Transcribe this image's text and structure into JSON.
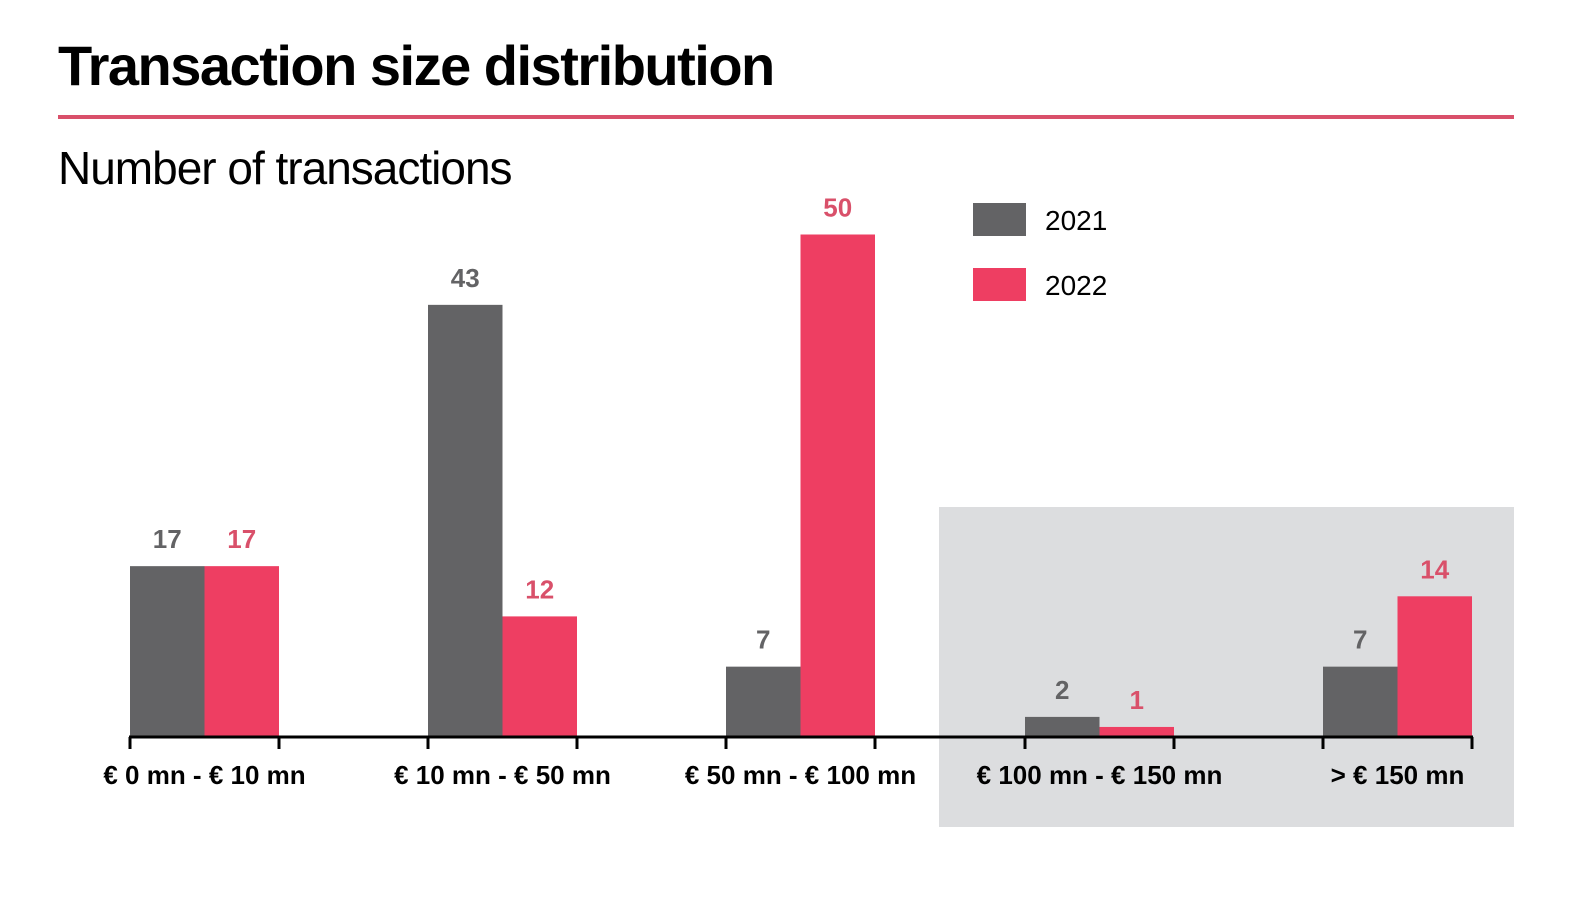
{
  "header": {
    "title": "Transaction size distribution",
    "subtitle": "Number of transactions"
  },
  "colors": {
    "rule": "#d9506a",
    "series_2021": "#636365",
    "series_2022": "#ee3e62",
    "label_2021": "#636365",
    "label_2022": "#d9506a",
    "highlight_bg": "#dcdddf"
  },
  "chart_data": {
    "type": "bar",
    "title": "Transaction size distribution",
    "subtitle": "Number of transactions",
    "xlabel": "",
    "ylabel": "Number of transactions",
    "ylim": [
      0,
      50
    ],
    "grid": false,
    "legend_position": "top-right",
    "categories": [
      "€ 0 mn - € 10 mn",
      "€ 10 mn - € 50 mn",
      "€ 50 mn - € 100 mn",
      "€ 100 mn - € 150 mn",
      "> € 150 mn"
    ],
    "highlighted_categories": [
      "€ 100 mn - € 150 mn",
      "> € 150 mn"
    ],
    "series": [
      {
        "name": "2021",
        "values": [
          17,
          43,
          7,
          2,
          7
        ]
      },
      {
        "name": "2022",
        "values": [
          17,
          12,
          50,
          1,
          14
        ]
      }
    ]
  }
}
